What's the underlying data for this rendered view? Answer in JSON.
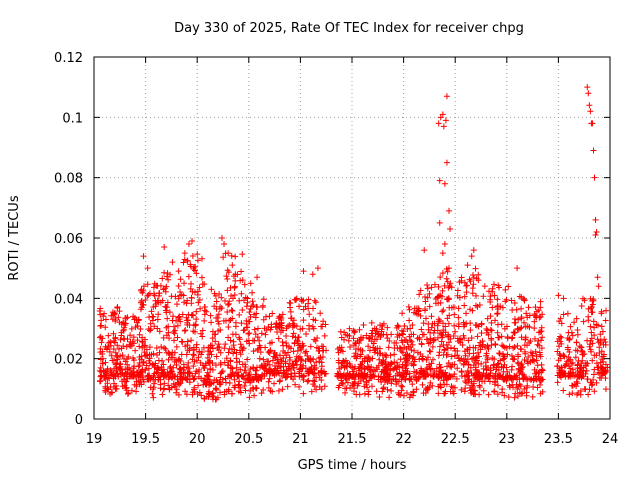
{
  "chart_data": {
    "type": "scatter",
    "title": "Day 330 of 2025, Rate Of TEC Index for receiver chpg",
    "xlabel": "GPS time / hours",
    "ylabel": "ROTI / TECUs",
    "xlim": [
      19,
      24
    ],
    "ylim": [
      0,
      0.12
    ],
    "grid": true,
    "marker": "+",
    "color": "#ff0000",
    "x_ticks": [
      "19",
      "19.5",
      "20",
      "20.5",
      "21",
      "21.5",
      "22",
      "22.5",
      "23",
      "23.5",
      "24"
    ],
    "y_ticks": [
      "0",
      "0.02",
      "0.04",
      "0.06",
      "0.08",
      "0.1",
      "0.12"
    ],
    "density_profile": [
      {
        "x_start": 19.05,
        "x_end": 19.25,
        "y_low": 0.008,
        "y_high": 0.038,
        "density": 120
      },
      {
        "x_start": 19.25,
        "x_end": 19.45,
        "y_low": 0.008,
        "y_high": 0.035,
        "density": 120
      },
      {
        "x_start": 19.45,
        "x_end": 19.65,
        "y_low": 0.007,
        "y_high": 0.045,
        "density": 130
      },
      {
        "x_start": 19.65,
        "x_end": 19.85,
        "y_low": 0.008,
        "y_high": 0.05,
        "density": 130
      },
      {
        "x_start": 19.85,
        "x_end": 20.05,
        "y_low": 0.007,
        "y_high": 0.055,
        "density": 130
      },
      {
        "x_start": 20.05,
        "x_end": 20.25,
        "y_low": 0.006,
        "y_high": 0.045,
        "density": 120
      },
      {
        "x_start": 20.25,
        "x_end": 20.45,
        "y_low": 0.008,
        "y_high": 0.055,
        "density": 120
      },
      {
        "x_start": 20.45,
        "x_end": 20.65,
        "y_low": 0.007,
        "y_high": 0.045,
        "density": 110
      },
      {
        "x_start": 20.65,
        "x_end": 20.85,
        "y_low": 0.009,
        "y_high": 0.035,
        "density": 110
      },
      {
        "x_start": 20.85,
        "x_end": 21.05,
        "y_low": 0.008,
        "y_high": 0.04,
        "density": 110
      },
      {
        "x_start": 21.05,
        "x_end": 21.25,
        "y_low": 0.009,
        "y_high": 0.04,
        "density": 90
      },
      {
        "x_start": 21.35,
        "x_end": 21.55,
        "y_low": 0.008,
        "y_high": 0.03,
        "density": 100
      },
      {
        "x_start": 21.55,
        "x_end": 21.75,
        "y_low": 0.008,
        "y_high": 0.032,
        "density": 110
      },
      {
        "x_start": 21.75,
        "x_end": 21.95,
        "y_low": 0.007,
        "y_high": 0.032,
        "density": 110
      },
      {
        "x_start": 21.95,
        "x_end": 22.15,
        "y_low": 0.007,
        "y_high": 0.038,
        "density": 120
      },
      {
        "x_start": 22.15,
        "x_end": 22.35,
        "y_low": 0.008,
        "y_high": 0.045,
        "density": 120
      },
      {
        "x_start": 22.35,
        "x_end": 22.55,
        "y_low": 0.008,
        "y_high": 0.05,
        "density": 130
      },
      {
        "x_start": 22.55,
        "x_end": 22.75,
        "y_low": 0.008,
        "y_high": 0.05,
        "density": 130
      },
      {
        "x_start": 22.75,
        "x_end": 22.95,
        "y_low": 0.008,
        "y_high": 0.045,
        "density": 120
      },
      {
        "x_start": 22.95,
        "x_end": 23.15,
        "y_low": 0.007,
        "y_high": 0.045,
        "density": 120
      },
      {
        "x_start": 23.15,
        "x_end": 23.35,
        "y_low": 0.007,
        "y_high": 0.04,
        "density": 110
      },
      {
        "x_start": 23.48,
        "x_end": 23.68,
        "y_low": 0.008,
        "y_high": 0.036,
        "density": 90
      },
      {
        "x_start": 23.68,
        "x_end": 23.88,
        "y_low": 0.008,
        "y_high": 0.04,
        "density": 100
      },
      {
        "x_start": 23.88,
        "x_end": 23.98,
        "y_low": 0.009,
        "y_high": 0.036,
        "density": 50
      }
    ],
    "outliers": [
      {
        "x": 19.48,
        "y": 0.054
      },
      {
        "x": 19.52,
        "y": 0.05
      },
      {
        "x": 19.68,
        "y": 0.057
      },
      {
        "x": 19.76,
        "y": 0.052
      },
      {
        "x": 19.82,
        "y": 0.049
      },
      {
        "x": 19.88,
        "y": 0.055
      },
      {
        "x": 19.92,
        "y": 0.058
      },
      {
        "x": 19.95,
        "y": 0.059
      },
      {
        "x": 20.24,
        "y": 0.06
      },
      {
        "x": 20.26,
        "y": 0.058
      },
      {
        "x": 20.3,
        "y": 0.055
      },
      {
        "x": 20.34,
        "y": 0.051
      },
      {
        "x": 20.37,
        "y": 0.048
      },
      {
        "x": 20.58,
        "y": 0.047
      },
      {
        "x": 21.03,
        "y": 0.049
      },
      {
        "x": 21.12,
        "y": 0.048
      },
      {
        "x": 21.17,
        "y": 0.05
      },
      {
        "x": 22.2,
        "y": 0.056
      },
      {
        "x": 22.34,
        "y": 0.098
      },
      {
        "x": 22.36,
        "y": 0.1
      },
      {
        "x": 22.38,
        "y": 0.101
      },
      {
        "x": 22.39,
        "y": 0.097
      },
      {
        "x": 22.42,
        "y": 0.107
      },
      {
        "x": 22.41,
        "y": 0.099
      },
      {
        "x": 22.35,
        "y": 0.079
      },
      {
        "x": 22.4,
        "y": 0.078
      },
      {
        "x": 22.42,
        "y": 0.085
      },
      {
        "x": 22.44,
        "y": 0.069
      },
      {
        "x": 22.35,
        "y": 0.065
      },
      {
        "x": 22.45,
        "y": 0.063
      },
      {
        "x": 22.4,
        "y": 0.058
      },
      {
        "x": 22.38,
        "y": 0.055
      },
      {
        "x": 22.44,
        "y": 0.05
      },
      {
        "x": 22.62,
        "y": 0.051
      },
      {
        "x": 22.68,
        "y": 0.056
      },
      {
        "x": 22.66,
        "y": 0.054
      },
      {
        "x": 23.1,
        "y": 0.05
      },
      {
        "x": 23.78,
        "y": 0.11
      },
      {
        "x": 23.79,
        "y": 0.108
      },
      {
        "x": 23.8,
        "y": 0.104
      },
      {
        "x": 23.81,
        "y": 0.102
      },
      {
        "x": 23.82,
        "y": 0.098
      },
      {
        "x": 23.83,
        "y": 0.098
      },
      {
        "x": 23.84,
        "y": 0.089
      },
      {
        "x": 23.85,
        "y": 0.08
      },
      {
        "x": 23.86,
        "y": 0.066
      },
      {
        "x": 23.87,
        "y": 0.062
      },
      {
        "x": 23.86,
        "y": 0.061
      },
      {
        "x": 23.88,
        "y": 0.047
      },
      {
        "x": 23.89,
        "y": 0.044
      },
      {
        "x": 23.55,
        "y": 0.04
      },
      {
        "x": 23.5,
        "y": 0.041
      }
    ]
  }
}
